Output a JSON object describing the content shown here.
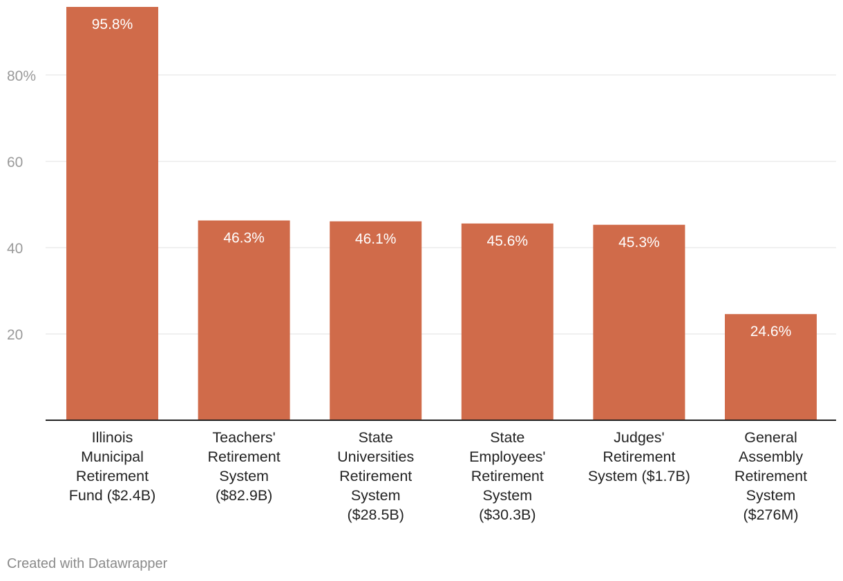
{
  "chart_data": {
    "type": "bar",
    "categories": [
      [
        "Illinois",
        "Municipal",
        "Retirement",
        "Fund ($2.4B)"
      ],
      [
        "Teachers'",
        "Retirement",
        "System",
        "($82.9B)"
      ],
      [
        "State",
        "Universities",
        "Retirement",
        "System",
        "($28.5B)"
      ],
      [
        "State",
        "Employees'",
        "Retirement",
        "System",
        "($30.3B)"
      ],
      [
        "Judges'",
        "Retirement",
        "System ($1.7B)"
      ],
      [
        "General",
        "Assembly",
        "Retirement",
        "System",
        "($276M)"
      ]
    ],
    "values": [
      95.8,
      46.3,
      46.1,
      45.6,
      45.3,
      24.6
    ],
    "value_labels": [
      "95.8%",
      "46.3%",
      "46.1%",
      "45.6%",
      "45.3%",
      "24.6%"
    ],
    "y_ticks": [
      {
        "value": 20,
        "label": "20"
      },
      {
        "value": 40,
        "label": "40"
      },
      {
        "value": 60,
        "label": "60"
      },
      {
        "value": 80,
        "label": "80%"
      }
    ],
    "ylim": [
      0,
      95.8
    ],
    "bar_color": "#d06b4a",
    "grid": true,
    "title": "",
    "xlabel": "",
    "ylabel": ""
  },
  "footer": {
    "credit": "Created with Datawrapper"
  }
}
